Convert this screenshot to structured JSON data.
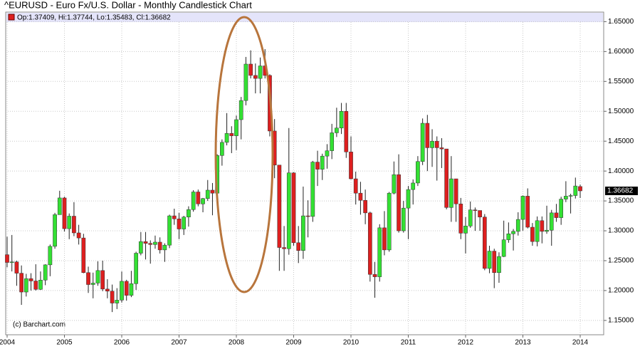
{
  "chart_data": {
    "type": "candlestick",
    "title": "^EURUSD - Euro Fx/U.S. Dollar - Monthly Candlestick Chart",
    "legend_text": "Op:1.37409, Hi:1.37744, Lo:1.35483, Cl:1.36682",
    "watermark": "(c) Barchart.com",
    "up_color": "#33e033",
    "down_color": "#dd1f1f",
    "grid": true,
    "ylim": [
      1.126,
      1.666
    ],
    "yticks": [
      {
        "value": 1.15,
        "label": "1.15000"
      },
      {
        "value": 1.2,
        "label": "1.20000"
      },
      {
        "value": 1.25,
        "label": "1.25000"
      },
      {
        "value": 1.3,
        "label": "1.30000"
      },
      {
        "value": 1.35,
        "label": "1.35000"
      },
      {
        "value": 1.4,
        "label": "1.40000"
      },
      {
        "value": 1.45,
        "label": "1.45000"
      },
      {
        "value": 1.5,
        "label": "1.50000"
      },
      {
        "value": 1.55,
        "label": "1.55000"
      },
      {
        "value": 1.6,
        "label": "1.60000"
      },
      {
        "value": 1.65,
        "label": "1.65000"
      }
    ],
    "categories": [
      "2004",
      null,
      null,
      null,
      null,
      null,
      null,
      null,
      null,
      null,
      null,
      null,
      "2005",
      null,
      null,
      null,
      null,
      null,
      null,
      null,
      null,
      null,
      null,
      null,
      "2006",
      null,
      null,
      null,
      null,
      null,
      null,
      null,
      null,
      null,
      null,
      null,
      "2007",
      null,
      null,
      null,
      null,
      null,
      null,
      null,
      null,
      null,
      null,
      null,
      "2008",
      null,
      null,
      null,
      null,
      null,
      null,
      null,
      null,
      null,
      null,
      null,
      "2009",
      null,
      null,
      null,
      null,
      null,
      null,
      null,
      null,
      null,
      null,
      null,
      "2010",
      null,
      null,
      null,
      null,
      null,
      null,
      null,
      null,
      null,
      null,
      null,
      "2011",
      null,
      null,
      null,
      null,
      null,
      null,
      null,
      null,
      null,
      null,
      null,
      "2012",
      null,
      null,
      null,
      null,
      null,
      null,
      null,
      null,
      null,
      null,
      null,
      "2013",
      null,
      null,
      null,
      null,
      null,
      null,
      null,
      null,
      null,
      null,
      null,
      "2014"
    ],
    "open": [
      1.26,
      1.247,
      1.248,
      1.229,
      1.1975,
      1.22,
      1.216,
      1.202,
      1.2175,
      1.243,
      1.274,
      1.327,
      1.355,
      1.3035,
      1.3245,
      1.2965,
      1.288,
      1.23,
      1.21,
      1.2125,
      1.2335,
      1.2025,
      1.199,
      1.179,
      1.184,
      1.2155,
      1.192,
      1.2115,
      1.2625,
      1.282,
      1.279,
      1.277,
      1.281,
      1.268,
      1.276,
      1.325,
      1.32,
      1.303,
      1.323,
      1.3355,
      1.365,
      1.345,
      1.354,
      1.368,
      1.363,
      1.426,
      1.448,
      1.463,
      1.459,
      1.486,
      1.518,
      1.579,
      1.56,
      1.555,
      1.576,
      1.56,
      1.467,
      1.41,
      1.272,
      1.27,
      1.397,
      1.28,
      1.267,
      1.325,
      1.324,
      1.415,
      1.403,
      1.425,
      1.434,
      1.464,
      1.472,
      1.5,
      1.432,
      1.387,
      1.363,
      1.351,
      1.33,
      1.227,
      1.223,
      1.305,
      1.268,
      1.363,
      1.394,
      1.3,
      1.338,
      1.369,
      1.38,
      1.416,
      1.48,
      1.439,
      1.45,
      1.439,
      1.437,
      1.339,
      1.387,
      1.345,
      1.296,
      1.308,
      1.335,
      1.334,
      1.323,
      1.237,
      1.266,
      1.23,
      1.257,
      1.285,
      1.295,
      1.299,
      1.319,
      1.358,
      1.306,
      1.282,
      1.317,
      1.299,
      1.301,
      1.33,
      1.322,
      1.353,
      1.358,
      1.359,
      1.37409
    ],
    "high": [
      1.29,
      1.293,
      1.25,
      1.242,
      1.228,
      1.229,
      1.244,
      1.232,
      1.244,
      1.277,
      1.33,
      1.367,
      1.357,
      1.329,
      1.348,
      1.31,
      1.295,
      1.24,
      1.23,
      1.249,
      1.25,
      1.219,
      1.21,
      1.204,
      1.232,
      1.218,
      1.233,
      1.265,
      1.298,
      1.298,
      1.284,
      1.292,
      1.289,
      1.279,
      1.327,
      1.337,
      1.33,
      1.325,
      1.341,
      1.368,
      1.369,
      1.355,
      1.385,
      1.38,
      1.428,
      1.453,
      1.497,
      1.475,
      1.493,
      1.524,
      1.591,
      1.602,
      1.58,
      1.59,
      1.604,
      1.562,
      1.487,
      1.41,
      1.308,
      1.472,
      1.398,
      1.308,
      1.374,
      1.351,
      1.417,
      1.434,
      1.429,
      1.445,
      1.479,
      1.506,
      1.514,
      1.514,
      1.458,
      1.399,
      1.382,
      1.369,
      1.332,
      1.248,
      1.311,
      1.333,
      1.365,
      1.416,
      1.428,
      1.35,
      1.375,
      1.386,
      1.425,
      1.488,
      1.494,
      1.47,
      1.458,
      1.455,
      1.437,
      1.425,
      1.387,
      1.355,
      1.323,
      1.349,
      1.339,
      1.334,
      1.328,
      1.275,
      1.27,
      1.264,
      1.317,
      1.314,
      1.303,
      1.331,
      1.359,
      1.371,
      1.313,
      1.324,
      1.324,
      1.342,
      1.335,
      1.345,
      1.357,
      1.383,
      1.362,
      1.389,
      1.37744
    ],
    "low": [
      1.239,
      1.232,
      1.208,
      1.176,
      1.19,
      1.2,
      1.2,
      1.201,
      1.209,
      1.224,
      1.27,
      1.327,
      1.299,
      1.286,
      1.291,
      1.277,
      1.229,
      1.196,
      1.187,
      1.208,
      1.199,
      1.187,
      1.164,
      1.169,
      1.18,
      1.183,
      1.189,
      1.201,
      1.259,
      1.252,
      1.245,
      1.27,
      1.262,
      1.248,
      1.271,
      1.31,
      1.286,
      1.293,
      1.307,
      1.332,
      1.341,
      1.331,
      1.35,
      1.326,
      1.359,
      1.409,
      1.443,
      1.43,
      1.435,
      1.453,
      1.51,
      1.555,
      1.53,
      1.53,
      1.555,
      1.458,
      1.388,
      1.233,
      1.233,
      1.26,
      1.275,
      1.246,
      1.253,
      1.289,
      1.315,
      1.375,
      1.385,
      1.404,
      1.42,
      1.457,
      1.462,
      1.422,
      1.386,
      1.344,
      1.327,
      1.311,
      1.215,
      1.188,
      1.215,
      1.259,
      1.265,
      1.361,
      1.297,
      1.297,
      1.286,
      1.344,
      1.375,
      1.41,
      1.4,
      1.407,
      1.384,
      1.405,
      1.336,
      1.315,
      1.315,
      1.286,
      1.262,
      1.305,
      1.3,
      1.3,
      1.234,
      1.229,
      1.204,
      1.213,
      1.256,
      1.28,
      1.267,
      1.292,
      1.3,
      1.304,
      1.275,
      1.274,
      1.279,
      1.295,
      1.275,
      1.315,
      1.31,
      1.348,
      1.329,
      1.354,
      1.35483
    ],
    "close": [
      1.247,
      1.248,
      1.229,
      1.1975,
      1.22,
      1.216,
      1.202,
      1.2175,
      1.243,
      1.274,
      1.327,
      1.355,
      1.3035,
      1.3245,
      1.2965,
      1.288,
      1.23,
      1.21,
      1.2125,
      1.2335,
      1.2025,
      1.199,
      1.179,
      1.184,
      1.2155,
      1.192,
      1.2115,
      1.2625,
      1.282,
      1.279,
      1.277,
      1.281,
      1.268,
      1.276,
      1.325,
      1.32,
      1.303,
      1.323,
      1.3355,
      1.365,
      1.345,
      1.354,
      1.368,
      1.363,
      1.426,
      1.448,
      1.463,
      1.459,
      1.486,
      1.518,
      1.579,
      1.56,
      1.555,
      1.576,
      1.56,
      1.467,
      1.41,
      1.272,
      1.27,
      1.397,
      1.28,
      1.267,
      1.325,
      1.324,
      1.415,
      1.403,
      1.425,
      1.434,
      1.464,
      1.472,
      1.5,
      1.432,
      1.387,
      1.363,
      1.351,
      1.33,
      1.227,
      1.223,
      1.305,
      1.268,
      1.363,
      1.394,
      1.3,
      1.338,
      1.369,
      1.38,
      1.416,
      1.48,
      1.439,
      1.45,
      1.439,
      1.437,
      1.339,
      1.387,
      1.345,
      1.296,
      1.308,
      1.335,
      1.334,
      1.323,
      1.237,
      1.266,
      1.23,
      1.257,
      1.285,
      1.295,
      1.299,
      1.319,
      1.358,
      1.306,
      1.282,
      1.317,
      1.299,
      1.301,
      1.33,
      1.322,
      1.353,
      1.358,
      1.359,
      1.375,
      1.36682
    ]
  }
}
